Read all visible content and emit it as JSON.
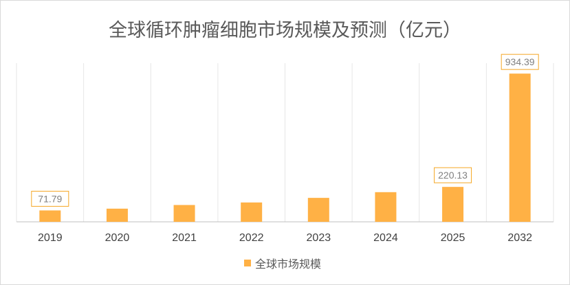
{
  "chart_data": {
    "type": "bar",
    "title": "全球循环肿瘤细胞市场规模及预测（亿元）",
    "categories": [
      "2019",
      "2020",
      "2021",
      "2022",
      "2023",
      "2024",
      "2025",
      "2032"
    ],
    "series": [
      {
        "name": "全球市场规模",
        "values": [
          71.79,
          83,
          106,
          122,
          151,
          187,
          220.13,
          934.39
        ],
        "labels": [
          "71.79",
          "",
          "",
          "",
          "",
          "",
          "220.13",
          "934.39"
        ]
      }
    ],
    "ylim": [
      0,
      1000
    ],
    "grid": "vertical",
    "legend": "bottom",
    "bar_color": "#FFB145",
    "label_border_color": "#F5A623"
  }
}
